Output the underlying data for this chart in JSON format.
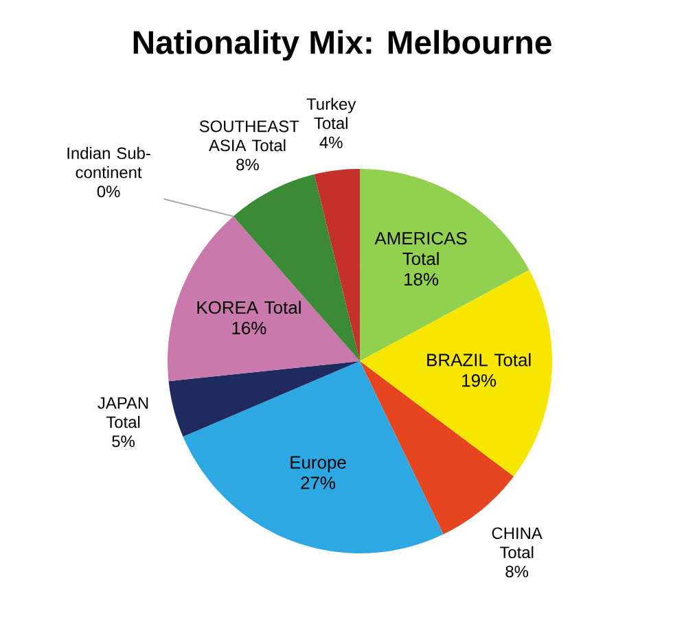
{
  "chart_data": {
    "type": "pie",
    "title": "Nationality Mix: Melbourne",
    "categories": [
      "AMERICAS Total",
      "BRAZIL Total",
      "CHINA Total",
      "Europe",
      "JAPAN Total",
      "KOREA Total",
      "Indian Sub-continent",
      "SOUTHEAST ASIA Total",
      "Turkey Total"
    ],
    "values": [
      18,
      19,
      8,
      27,
      5,
      16,
      0,
      8,
      4
    ],
    "value_labels": [
      "18%",
      "19%",
      "8%",
      "27%",
      "5%",
      "16%",
      "0%",
      "8%",
      "4%"
    ],
    "colors": [
      "#92d050",
      "#f7e600",
      "#e5461f",
      "#2ea8e2",
      "#1f2a5e",
      "#c979ab",
      "#7a4a9a",
      "#3a8a36",
      "#c4302c"
    ]
  }
}
